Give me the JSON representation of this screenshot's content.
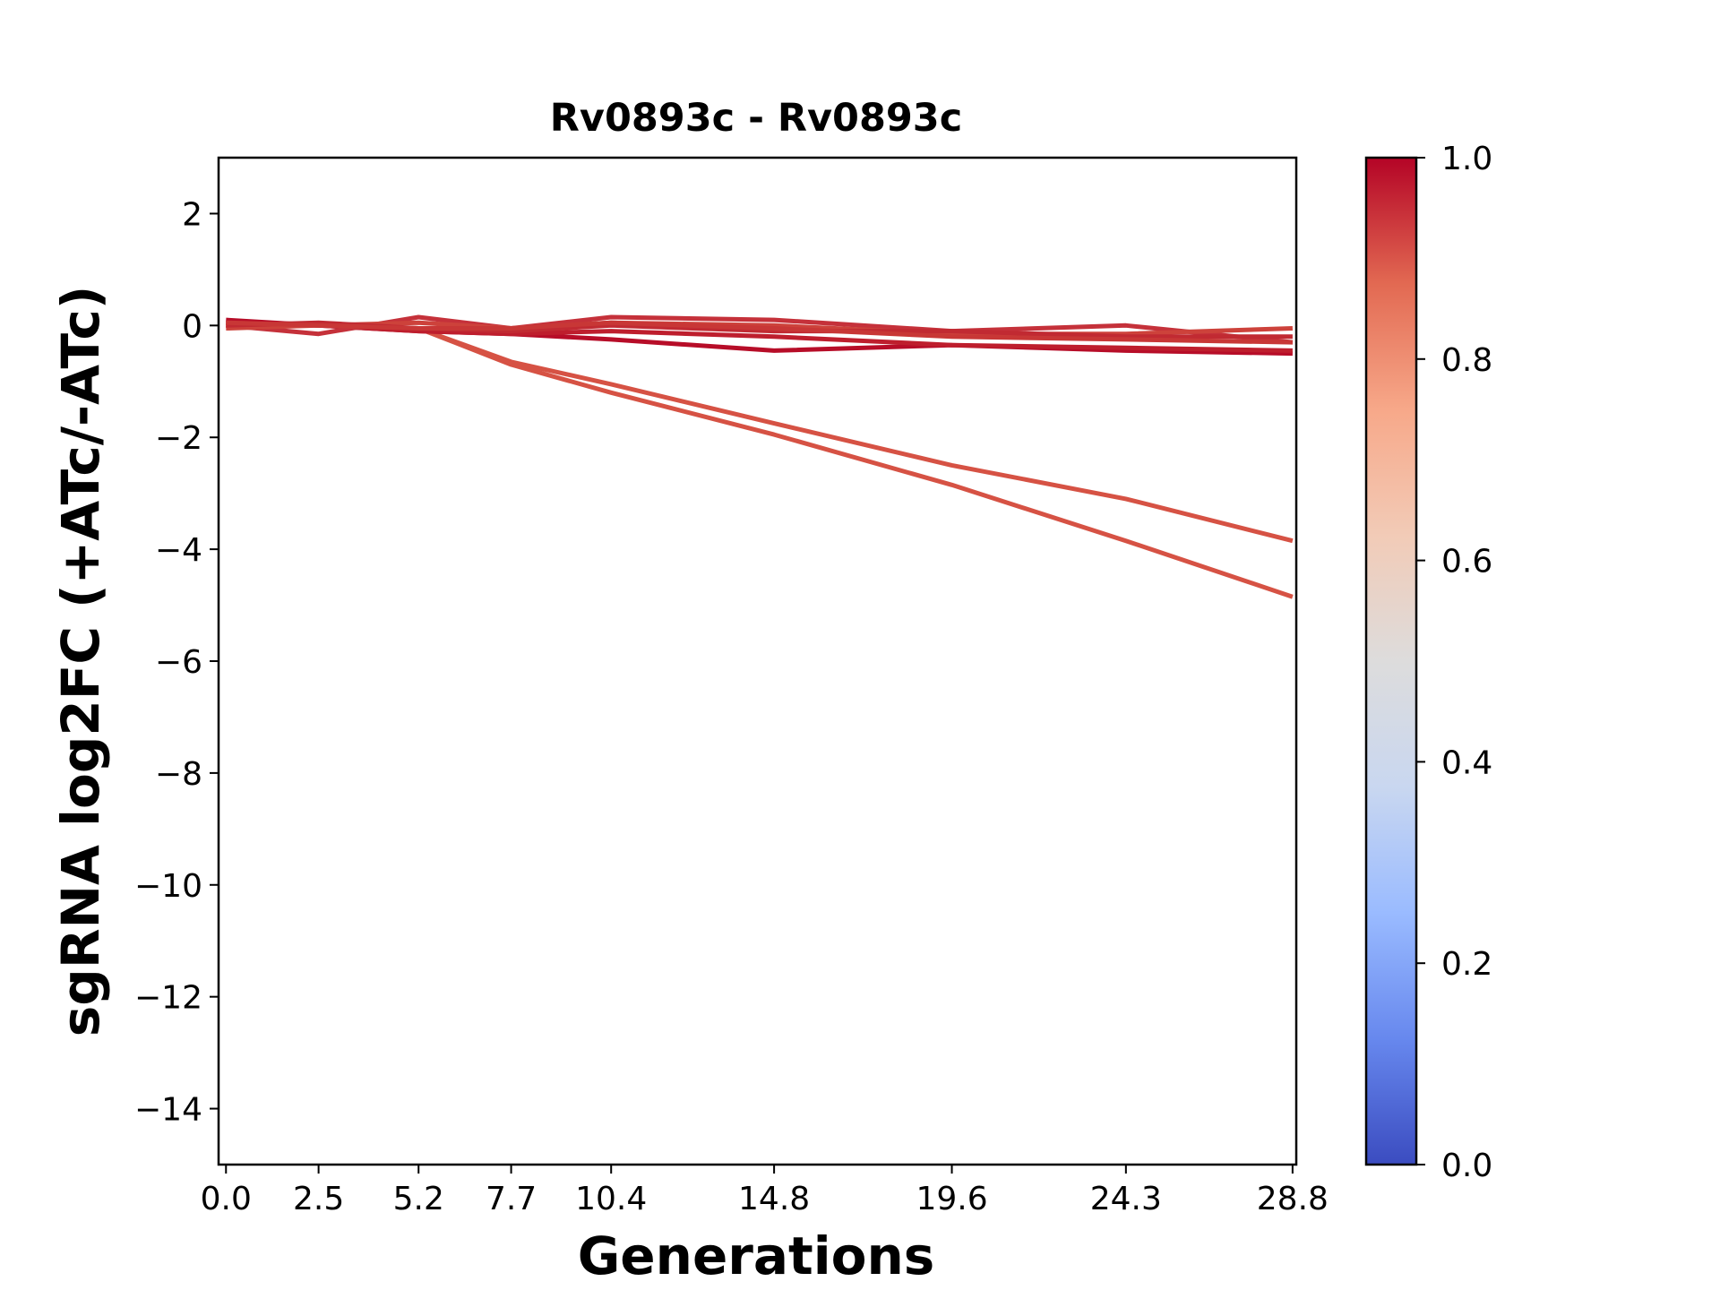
{
  "chart_data": {
    "type": "line",
    "title": "Rv0893c - Rv0893c",
    "xlabel": "Generations",
    "ylabel": "sgRNA log2FC (+ATc/-ATc)",
    "x": [
      0.0,
      2.5,
      5.2,
      7.7,
      10.4,
      14.8,
      19.6,
      24.3,
      28.8
    ],
    "x_tick_labels": [
      "0.0",
      "2.5",
      "5.2",
      "7.7",
      "10.4",
      "14.8",
      "19.6",
      "24.3",
      "28.8"
    ],
    "xlim": [
      -0.2,
      28.9
    ],
    "ylim": [
      -15,
      3
    ],
    "y_ticks": [
      2,
      0,
      -2,
      -4,
      -6,
      -8,
      -10,
      -12,
      -14
    ],
    "y_tick_labels": [
      "2",
      "0",
      "−2",
      "−4",
      "−6",
      "−8",
      "−10",
      "−12",
      "−14"
    ],
    "series": [
      {
        "values": [
          0.05,
          0.0,
          -0.05,
          -0.7,
          -1.2,
          -1.95,
          -2.85,
          -3.85,
          -4.85
        ],
        "score": 0.88,
        "color": "#d65244"
      },
      {
        "values": [
          0.0,
          0.0,
          -0.05,
          -0.65,
          -1.05,
          -1.75,
          -2.5,
          -3.1,
          -3.85
        ],
        "score": 0.88,
        "color": "#d65244"
      },
      {
        "values": [
          0.1,
          0.0,
          -0.1,
          -0.15,
          -0.25,
          -0.45,
          -0.35,
          -0.45,
          -0.5
        ],
        "score": 0.99,
        "color": "#b70d28"
      },
      {
        "values": [
          0.05,
          0.0,
          -0.1,
          -0.15,
          -0.1,
          -0.2,
          -0.35,
          -0.4,
          -0.45
        ],
        "score": 0.97,
        "color": "#be1e2d"
      },
      {
        "values": [
          0.0,
          -0.15,
          0.15,
          -0.05,
          0.15,
          0.1,
          -0.1,
          0.0,
          -0.3
        ],
        "score": 0.95,
        "color": "#c5313a"
      },
      {
        "values": [
          -0.05,
          0.0,
          0.05,
          -0.05,
          0.05,
          0.0,
          -0.15,
          -0.15,
          -0.05
        ],
        "score": 0.92,
        "color": "#cd423b"
      },
      {
        "values": [
          0.0,
          0.05,
          -0.05,
          -0.1,
          0.0,
          -0.1,
          -0.1,
          -0.2,
          -0.2
        ],
        "score": 0.96,
        "color": "#c12a32"
      },
      {
        "values": [
          0.05,
          0.0,
          -0.05,
          -0.05,
          0.05,
          -0.05,
          -0.2,
          -0.25,
          -0.3
        ],
        "score": 0.93,
        "color": "#c83736"
      }
    ],
    "colorbar": {
      "min": 0.0,
      "max": 1.0,
      "ticks": [
        0.0,
        0.2,
        0.4,
        0.6,
        0.8,
        1.0
      ],
      "tick_labels": [
        "0.0",
        "0.2",
        "0.4",
        "0.6",
        "0.8",
        "1.0"
      ],
      "colormap": "coolwarm",
      "stops": [
        "#3b4cc0",
        "#6788ee",
        "#9abbff",
        "#c9d7f0",
        "#dddcdc",
        "#f2cbb7",
        "#f7a889",
        "#e26952",
        "#b40426"
      ]
    },
    "grid": false,
    "legend": "none"
  }
}
